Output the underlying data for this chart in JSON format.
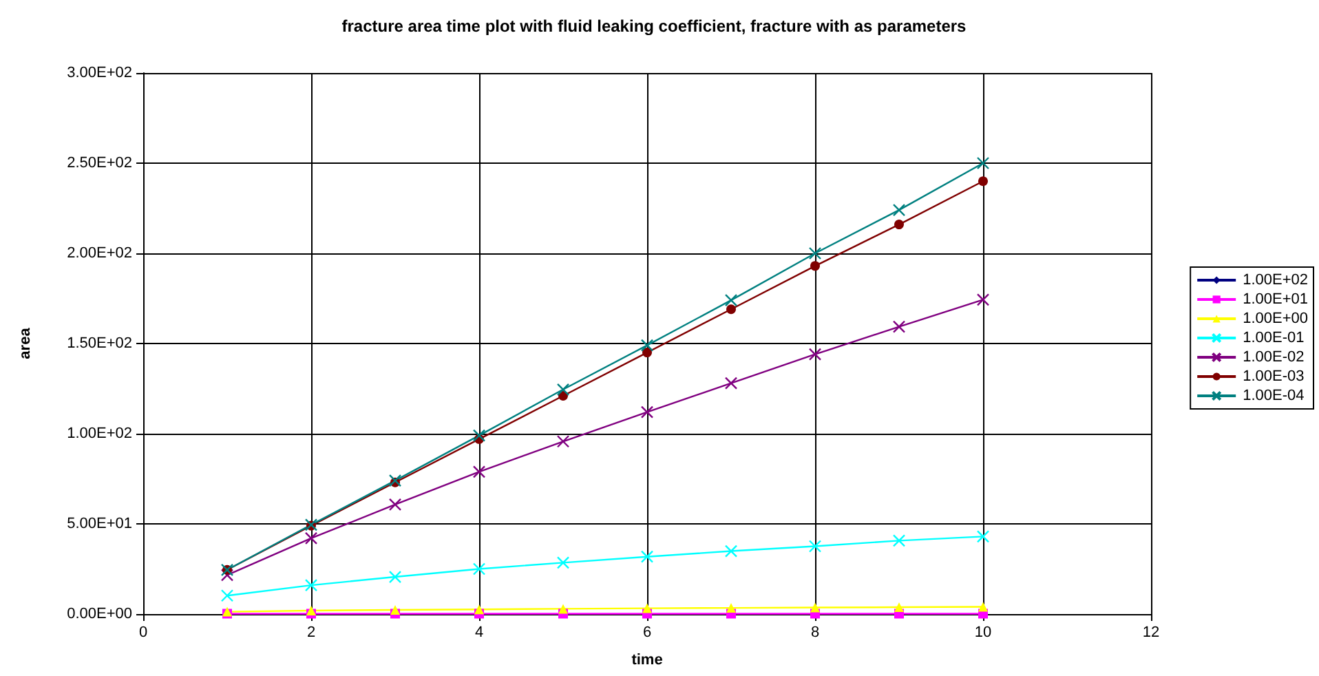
{
  "chart_data": {
    "type": "line",
    "title": "fracture area time plot with fluid leaking coefficient, fracture with as parameters",
    "xlabel": "time",
    "ylabel": "area",
    "x": [
      1,
      2,
      3,
      4,
      5,
      6,
      7,
      8,
      9,
      10
    ],
    "xlim": [
      0,
      12
    ],
    "xticks": [
      0,
      2,
      4,
      6,
      8,
      10,
      12
    ],
    "ylim": [
      0,
      300
    ],
    "yticks": [
      {
        "value": 0,
        "label": "0.00E+00"
      },
      {
        "value": 50,
        "label": "5.00E+01"
      },
      {
        "value": 100,
        "label": "1.00E+02"
      },
      {
        "value": 150,
        "label": "1.50E+02"
      },
      {
        "value": 200,
        "label": "2.00E+02"
      },
      {
        "value": 250,
        "label": "2.50E+02"
      },
      {
        "value": 300,
        "label": "3.00E+02"
      }
    ],
    "grid": true,
    "legend": "right",
    "series": [
      {
        "name": "1.00E+02",
        "color": "#000080",
        "marker": "diamond",
        "values": [
          null,
          null,
          null,
          null,
          null,
          null,
          null,
          null,
          null,
          null
        ]
      },
      {
        "name": "1.00E+01",
        "color": "#ff00ff",
        "marker": "square",
        "values": [
          0.2,
          0.2,
          0.2,
          0.2,
          0.2,
          0.2,
          0.2,
          0.2,
          0.2,
          0.2
        ]
      },
      {
        "name": "1.00E+00",
        "color": "#ffff00",
        "marker": "triangle",
        "values": [
          1.3,
          1.9,
          2.3,
          2.6,
          2.9,
          3.2,
          3.4,
          3.6,
          3.8,
          4.0
        ]
      },
      {
        "name": "1.00E-01",
        "color": "#00ffff",
        "marker": "cross",
        "values": [
          10.2,
          16,
          20.6,
          25,
          28.5,
          31.8,
          34.9,
          37.6,
          40.7,
          43
        ]
      },
      {
        "name": "1.00E-02",
        "color": "#800080",
        "marker": "cross",
        "values": [
          21.6,
          42,
          60.7,
          78.9,
          95.7,
          112,
          128,
          144,
          159.3,
          174.3
        ]
      },
      {
        "name": "1.00E-03",
        "color": "#800000",
        "marker": "circle",
        "values": [
          24.5,
          49,
          73,
          97,
          121,
          145,
          169,
          193,
          216,
          240
        ]
      },
      {
        "name": "1.00E-04",
        "color": "#008080",
        "marker": "cross",
        "values": [
          24.5,
          49.5,
          74,
          99,
          124.5,
          149,
          174,
          200,
          224,
          250
        ]
      }
    ]
  }
}
